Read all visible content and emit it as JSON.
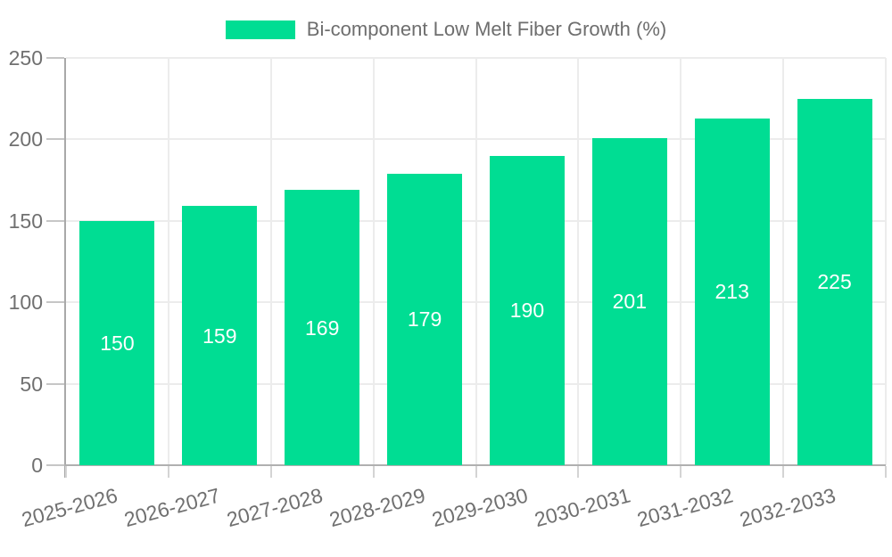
{
  "legend": {
    "label": "Bi-component Low Melt Fiber Growth (%)"
  },
  "chart_data": {
    "type": "bar",
    "title": "",
    "series_name": "Bi-component Low Melt Fiber Growth (%)",
    "categories": [
      "2025-2026",
      "2026-2027",
      "2027-2028",
      "2028-2029",
      "2029-2030",
      "2030-2031",
      "2031-2032",
      "2032-2033"
    ],
    "values": [
      150,
      159,
      169,
      179,
      190,
      201,
      213,
      225
    ],
    "yticks": [
      0,
      50,
      100,
      150,
      200,
      250
    ],
    "ylim": [
      0,
      250
    ],
    "xlabel": "",
    "ylabel": "",
    "grid": true,
    "legend_position": "top-center",
    "bar_labels_inside": "center",
    "xtick_rotation_deg": 15,
    "bar_color": "#00dd93",
    "bar_label_color": "#ffffff",
    "axis_text_color": "#707070",
    "grid_color": "#ececec",
    "axis_line_color": "#aaaaaa",
    "background_color": "#ffffff"
  }
}
